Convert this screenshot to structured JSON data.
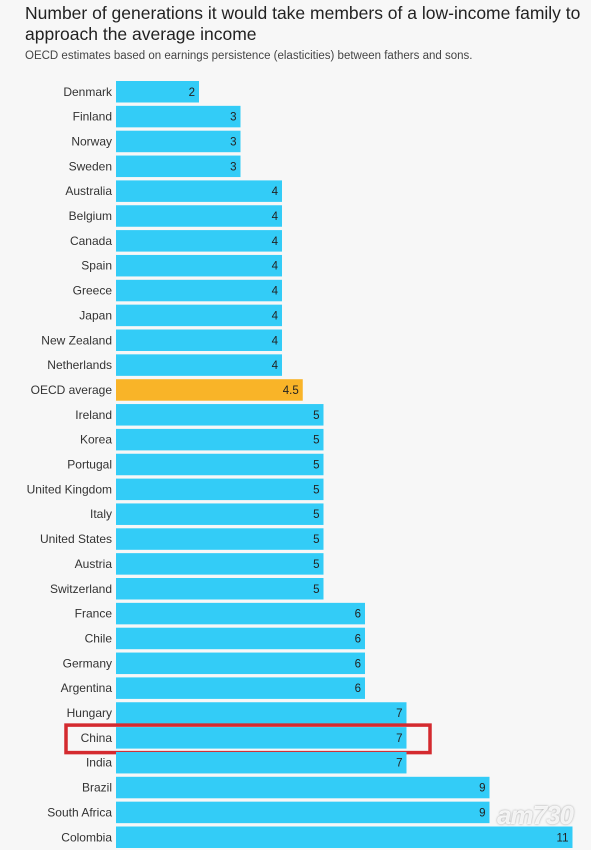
{
  "chart_data": {
    "type": "bar",
    "orientation": "horizontal",
    "title": "Number of generations it would take members of a low-income family to approach the average income",
    "subtitle": "OECD estimates based on earnings persistence (elasticities) between fathers and sons.",
    "categories": [
      "Denmark",
      "Finland",
      "Norway",
      "Sweden",
      "Australia",
      "Belgium",
      "Canada",
      "Spain",
      "Greece",
      "Japan",
      "New Zealand",
      "Netherlands",
      "OECD average",
      "Ireland",
      "Korea",
      "Portugal",
      "United Kingdom",
      "Italy",
      "United States",
      "Austria",
      "Switzerland",
      "France",
      "Chile",
      "Germany",
      "Argentina",
      "Hungary",
      "China",
      "India",
      "Brazil",
      "South Africa",
      "Colombia"
    ],
    "values": [
      2,
      3,
      3,
      3,
      4,
      4,
      4,
      4,
      4,
      4,
      4,
      4,
      4.5,
      5,
      5,
      5,
      5,
      5,
      5,
      5,
      5,
      6,
      6,
      6,
      6,
      7,
      7,
      7,
      9,
      9,
      11
    ],
    "highlight_bar": "OECD average",
    "boxed_category": "China",
    "colors": {
      "bar": "#33ccf7",
      "highlight": "#f9b428",
      "box": "#d42a2f"
    }
  },
  "watermark": "am730"
}
